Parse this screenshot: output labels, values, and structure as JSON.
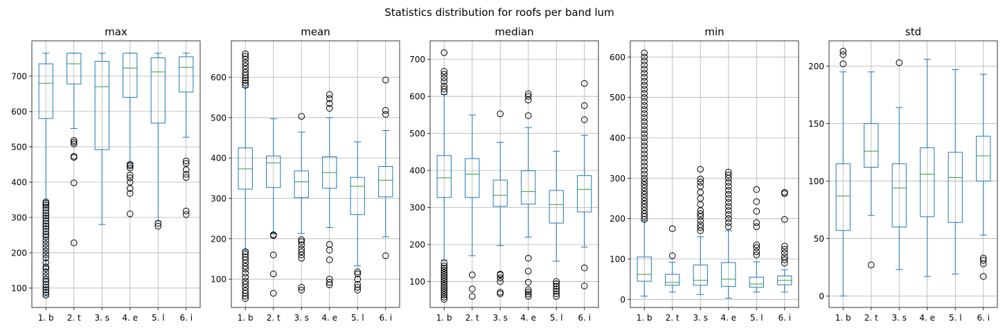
{
  "title": "Statistics distribution for roofs per band lum",
  "colors": {
    "box": "#1f77b4",
    "median": "#2ca02c",
    "flier": "#000000",
    "grid": "#b0b0b0"
  },
  "chart_data": [
    {
      "type": "box",
      "title": "max",
      "categories": [
        "1. b",
        "2. t",
        "3. s",
        "4. e",
        "5. l",
        "6. i"
      ],
      "ylim": [
        45,
        800
      ],
      "yticks": [
        100,
        200,
        300,
        400,
        500,
        600,
        700
      ],
      "grid": true,
      "boxes": [
        {
          "whislo": 77,
          "q1": 580,
          "med": 680,
          "q3": 735,
          "whishi": 765,
          "fliers": [
            80,
            88,
            95,
            102,
            110,
            118,
            125,
            135,
            145,
            155,
            160,
            172,
            185,
            195,
            205,
            215,
            225,
            235,
            245,
            252,
            260,
            268,
            275,
            282,
            290,
            298,
            305,
            312,
            320,
            328,
            335,
            340,
            344
          ]
        },
        {
          "whislo": 552,
          "q1": 678,
          "med": 735,
          "q3": 765,
          "whishi": 765,
          "fliers": [
            228,
            398,
            470,
            473,
            508,
            513,
            518
          ]
        },
        {
          "whislo": 280,
          "q1": 492,
          "med": 670,
          "q3": 742,
          "whishi": 765,
          "fliers": []
        },
        {
          "whislo": 455,
          "q1": 640,
          "med": 723,
          "q3": 765,
          "whishi": 765,
          "fliers": [
            310,
            368,
            382,
            400,
            412,
            420,
            440,
            446,
            450
          ]
        },
        {
          "whislo": 290,
          "q1": 567,
          "med": 712,
          "q3": 752,
          "whishi": 765,
          "fliers": [
            275,
            283
          ]
        },
        {
          "whislo": 527,
          "q1": 655,
          "med": 725,
          "q3": 755,
          "whishi": 765,
          "fliers": [
            308,
            318,
            413,
            422,
            435,
            453,
            460
          ]
        }
      ]
    },
    {
      "type": "box",
      "title": "mean",
      "categories": [
        "1. b",
        "2. t",
        "3. s",
        "4. e",
        "5. l",
        "6. i"
      ],
      "ylim": [
        30,
        690
      ],
      "yticks": [
        100,
        200,
        300,
        400,
        500,
        600
      ],
      "grid": true,
      "boxes": [
        {
          "whislo": 172,
          "q1": 323,
          "med": 373,
          "q3": 425,
          "whishi": 575,
          "fliers": [
            52,
            58,
            65,
            72,
            80,
            88,
            95,
            105,
            115,
            125,
            132,
            140,
            148,
            155,
            162,
            168,
            580,
            586,
            592,
            598,
            605,
            612,
            620,
            628,
            636,
            645,
            652,
            658
          ]
        },
        {
          "whislo": 212,
          "q1": 327,
          "med": 388,
          "q3": 405,
          "whishi": 497,
          "fliers": [
            65,
            113,
            160,
            208,
            210
          ]
        },
        {
          "whislo": 213,
          "q1": 302,
          "med": 341,
          "q3": 368,
          "whishi": 464,
          "fliers": [
            73,
            80,
            152,
            160,
            168,
            175,
            185,
            193,
            198,
            503
          ]
        },
        {
          "whislo": 228,
          "q1": 325,
          "med": 364,
          "q3": 403,
          "whishi": 500,
          "fliers": [
            86,
            92,
            100,
            148,
            172,
            186,
            523,
            535,
            547,
            557
          ]
        },
        {
          "whislo": 133,
          "q1": 260,
          "med": 330,
          "q3": 352,
          "whishi": 440,
          "fliers": [
            73,
            80,
            87,
            100,
            113,
            118
          ]
        },
        {
          "whislo": 205,
          "q1": 304,
          "med": 345,
          "q3": 379,
          "whishi": 468,
          "fliers": [
            158,
            508,
            518,
            593
          ]
        }
      ]
    },
    {
      "type": "box",
      "title": "median",
      "categories": [
        "1. b",
        "2. t",
        "3. s",
        "4. e",
        "5. l",
        "6. i"
      ],
      "ylim": [
        30,
        750
      ],
      "yticks": [
        100,
        200,
        300,
        400,
        500,
        600,
        700
      ],
      "grid": true,
      "boxes": [
        {
          "whislo": 158,
          "q1": 327,
          "med": 380,
          "q3": 440,
          "whishi": 605,
          "fliers": [
            52,
            58,
            64,
            70,
            76,
            82,
            88,
            94,
            100,
            106,
            112,
            118,
            124,
            130,
            136,
            142,
            150,
            612,
            620,
            628,
            640,
            650,
            660,
            668,
            718
          ]
        },
        {
          "whislo": 170,
          "q1": 327,
          "med": 390,
          "q3": 432,
          "whishi": 550,
          "fliers": [
            60,
            80,
            118
          ]
        },
        {
          "whislo": 197,
          "q1": 303,
          "med": 333,
          "q3": 374,
          "whishi": 476,
          "fliers": [
            67,
            71,
            100,
            110,
            118,
            120,
            553
          ]
        },
        {
          "whislo": 220,
          "q1": 309,
          "med": 343,
          "q3": 399,
          "whishi": 516,
          "fliers": [
            60,
            66,
            72,
            78,
            98,
            128,
            163,
            548,
            590,
            600,
            607
          ]
        },
        {
          "whislo": 155,
          "q1": 258,
          "med": 308,
          "q3": 346,
          "whishi": 452,
          "fliers": [
            60,
            67,
            74,
            80,
            87,
            94,
            100
          ]
        },
        {
          "whislo": 193,
          "q1": 288,
          "med": 349,
          "q3": 386,
          "whishi": 495,
          "fliers": [
            88,
            137,
            537,
            575,
            635
          ]
        }
      ]
    },
    {
      "type": "box",
      "title": "min",
      "categories": [
        "1. b",
        "2. t",
        "3. s",
        "4. e",
        "5. l",
        "6. i"
      ],
      "ylim": [
        -20,
        640
      ],
      "yticks": [
        0,
        100,
        200,
        300,
        400,
        500,
        600
      ],
      "grid": true,
      "boxes": [
        {
          "whislo": 8,
          "q1": 45,
          "med": 62,
          "q3": 105,
          "whishi": 195,
          "fliers": [
            198,
            205,
            212,
            220,
            228,
            236,
            244,
            252,
            260,
            268,
            276,
            284,
            292,
            300,
            310,
            320,
            330,
            340,
            350,
            360,
            370,
            380,
            390,
            400,
            410,
            420,
            430,
            440,
            450,
            460,
            470,
            480,
            490,
            500,
            510,
            520,
            530,
            540,
            550,
            560,
            570,
            580,
            590,
            600,
            610
          ]
        },
        {
          "whislo": 18,
          "q1": 35,
          "med": 42,
          "q3": 62,
          "whishi": 92,
          "fliers": [
            108,
            175
          ]
        },
        {
          "whislo": 12,
          "q1": 35,
          "med": 47,
          "q3": 85,
          "whishi": 155,
          "fliers": [
            170,
            178,
            185,
            195,
            205,
            212,
            220,
            235,
            250,
            265,
            280,
            290,
            298,
            322
          ]
        },
        {
          "whislo": 3,
          "q1": 32,
          "med": 50,
          "q3": 91,
          "whishi": 170,
          "fliers": [
            180,
            190,
            200,
            210,
            220,
            230,
            240,
            250,
            260,
            270,
            280,
            290,
            300,
            308,
            315
          ]
        },
        {
          "whislo": 18,
          "q1": 30,
          "med": 38,
          "q3": 55,
          "whishi": 93,
          "fliers": [
            110,
            118,
            128,
            135,
            180,
            190,
            218,
            242,
            272
          ]
        },
        {
          "whislo": 18,
          "q1": 36,
          "med": 47,
          "q3": 58,
          "whishi": 73,
          "fliers": [
            90,
            98,
            105,
            115,
            124,
            132,
            198,
            262,
            265
          ]
        }
      ]
    },
    {
      "type": "box",
      "title": "std",
      "categories": [
        "1. b",
        "2. t",
        "3. s",
        "4. e",
        "5. l",
        "6. i"
      ],
      "ylim": [
        -10,
        222
      ],
      "yticks": [
        0,
        50,
        100,
        150,
        200
      ],
      "grid": true,
      "boxes": [
        {
          "whislo": 0,
          "q1": 57,
          "med": 87,
          "q3": 115,
          "whishi": 195,
          "fliers": [
            202,
            210,
            213
          ]
        },
        {
          "whislo": 70,
          "q1": 112,
          "med": 126,
          "q3": 150,
          "whishi": 195,
          "fliers": [
            27
          ]
        },
        {
          "whislo": 23,
          "q1": 60,
          "med": 94,
          "q3": 115,
          "whishi": 164,
          "fliers": [
            203
          ]
        },
        {
          "whislo": 17,
          "q1": 69,
          "med": 106,
          "q3": 129,
          "whishi": 206,
          "fliers": []
        },
        {
          "whislo": 19,
          "q1": 64,
          "med": 103,
          "q3": 125,
          "whishi": 197,
          "fliers": []
        },
        {
          "whislo": 53,
          "q1": 100,
          "med": 122,
          "q3": 139,
          "whishi": 193,
          "fliers": [
            17,
            28,
            31,
            33
          ]
        }
      ]
    }
  ]
}
